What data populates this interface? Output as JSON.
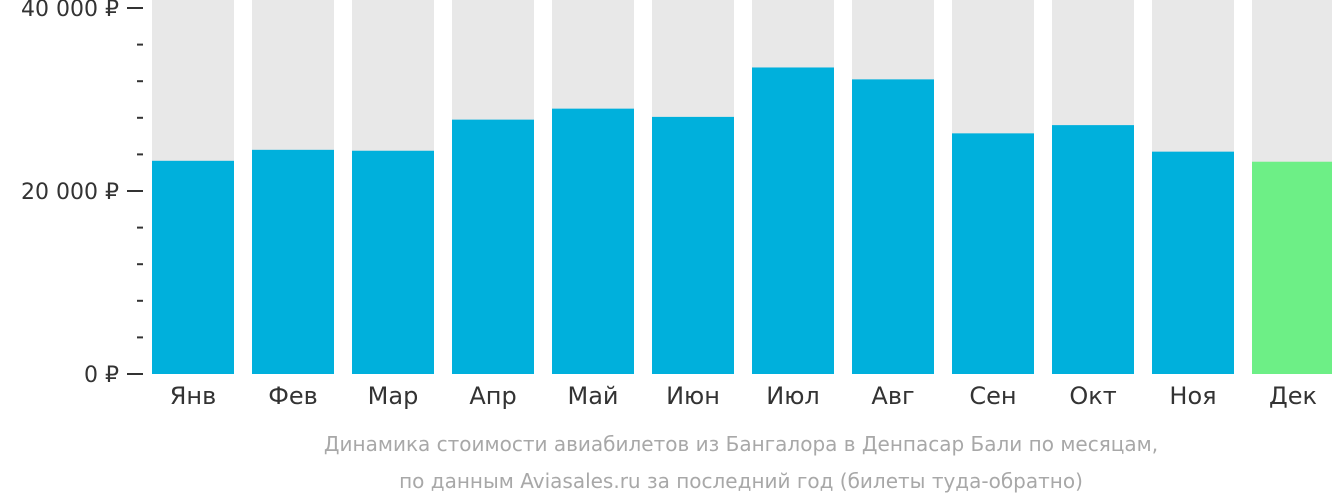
{
  "chart_data": {
    "type": "bar",
    "categories": [
      "Янв",
      "Фев",
      "Мар",
      "Апр",
      "Май",
      "Июн",
      "Июл",
      "Авг",
      "Сен",
      "Окт",
      "Ноя",
      "Дек"
    ],
    "values": [
      23300,
      24500,
      24400,
      27800,
      29000,
      28100,
      33500,
      32200,
      26300,
      27200,
      24300,
      23200
    ],
    "highlight_index": 11,
    "ylim": [
      0,
      40000
    ],
    "yticks": [
      {
        "value": 0,
        "label": "0 ₽"
      },
      {
        "value": 20000,
        "label": "20 000 ₽"
      },
      {
        "value": 40000,
        "label": "40 000 ₽"
      }
    ],
    "minor_tick_step": 4000,
    "colors": {
      "bar": "#00b0dc",
      "highlight": "#6def86",
      "background_bar": "#e8e8e8",
      "axis_text": "#333333"
    },
    "caption": [
      "Динамика стоимости авиабилетов из Бангалора в Денпасар Бали по месяцам,",
      "по данным Aviasales.ru за последний год (билеты туда-обратно)"
    ]
  }
}
